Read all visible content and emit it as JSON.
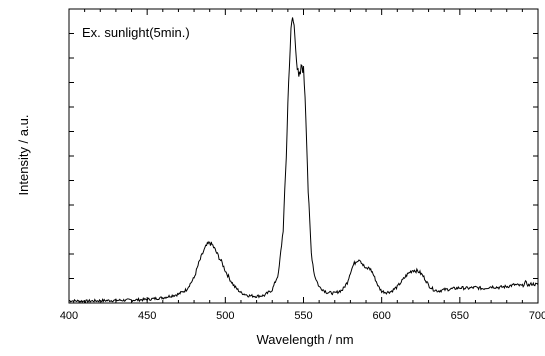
{
  "chart_data": {
    "type": "line",
    "title": "",
    "annotation": "Ex. sunlight(5min.)",
    "xlabel": "Wavelength / nm",
    "ylabel": "Intensity / a.u.",
    "xlim": [
      400,
      700
    ],
    "ylim": [
      0,
      100
    ],
    "x_ticks": [
      "400",
      "450",
      "500",
      "550",
      "600",
      "650",
      "700"
    ],
    "y_ticks_labeled": false,
    "grid": false,
    "legend": "none",
    "line_color": "#000000",
    "series": [
      {
        "x": [
          400,
          410,
          420,
          430,
          440,
          450,
          460,
          470,
          475,
          480,
          483,
          486,
          488,
          490,
          492,
          494,
          496,
          498,
          500,
          503,
          506,
          510,
          515,
          520,
          525,
          530,
          534,
          537,
          539,
          540,
          541,
          542,
          543,
          544,
          545,
          546,
          547,
          548,
          549,
          550,
          551,
          552,
          553,
          555,
          557,
          560,
          565,
          570,
          575,
          578,
          580,
          582,
          584,
          586,
          588,
          590,
          592,
          594,
          596,
          598,
          600,
          603,
          606,
          610,
          613,
          616,
          618,
          620,
          622,
          624,
          626,
          628,
          630,
          633,
          636,
          640,
          645,
          650,
          655,
          660,
          665,
          670,
          675,
          680,
          685,
          690,
          692,
          694,
          696,
          700
        ],
        "y": [
          0.8,
          0.6,
          0.8,
          0.9,
          1.0,
          1.2,
          1.8,
          3.0,
          4.5,
          8.5,
          13.5,
          17.5,
          19.5,
          20.5,
          19.5,
          17.5,
          15.5,
          13.5,
          11.0,
          8.0,
          5.5,
          3.5,
          2.5,
          2.3,
          2.6,
          4.5,
          10.0,
          25.0,
          50.0,
          68.0,
          82.0,
          92.0,
          97.0,
          94.0,
          88.0,
          80.0,
          76.0,
          78.0,
          81.0,
          79.0,
          71.0,
          56.0,
          38.0,
          17.0,
          9.5,
          5.5,
          3.6,
          3.3,
          4.5,
          7.0,
          10.5,
          13.0,
          14.5,
          15.0,
          13.0,
          11.5,
          12.0,
          10.5,
          8.0,
          5.5,
          4.0,
          3.6,
          3.9,
          5.5,
          7.5,
          9.5,
          10.5,
          11.2,
          11.0,
          10.6,
          9.5,
          8.0,
          6.0,
          4.6,
          4.1,
          4.5,
          4.8,
          5.2,
          5.0,
          5.3,
          4.9,
          5.6,
          5.3,
          5.6,
          6.2,
          5.8,
          7.0,
          6.0,
          6.5,
          6.2
        ]
      }
    ]
  }
}
